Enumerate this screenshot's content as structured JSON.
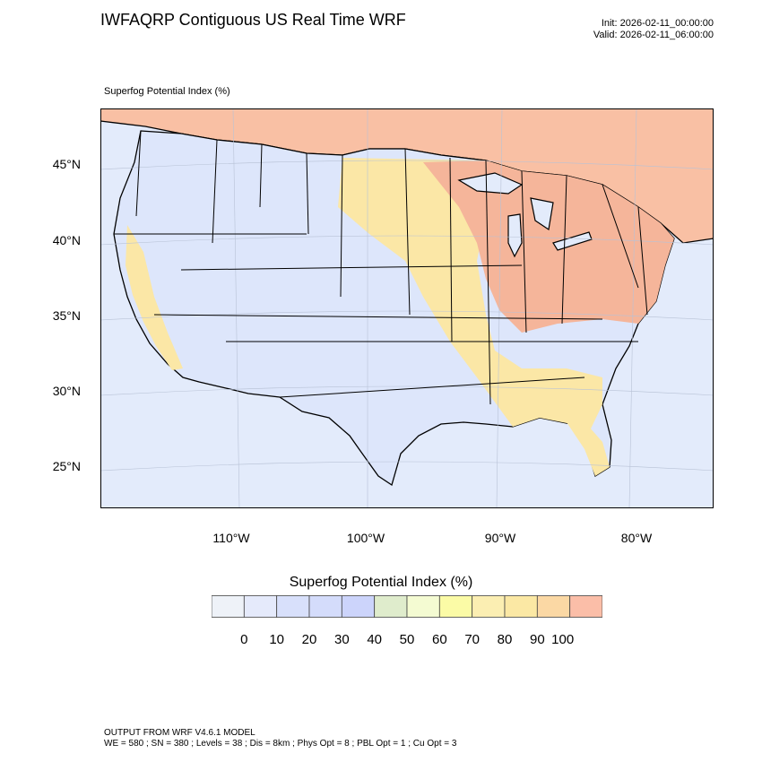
{
  "header": {
    "title": "IWFAQRP Contiguous US Real Time WRF",
    "init": "Init: 2026-02-11_00:00:00",
    "valid": "Valid: 2026-02-11_06:00:00"
  },
  "map": {
    "subtitle": "Superfog Potential Index   (%)",
    "lat_labels": [
      "45°N",
      "40°N",
      "35°N",
      "30°N",
      "25°N"
    ],
    "lon_labels": [
      "110°W",
      "100°W",
      "90°W",
      "80°W"
    ],
    "colors": {
      "ocean": "#e3ebfb",
      "land_low": "#dde6fb",
      "canada": "#f9c0a4",
      "moderate": "#fbe7a6",
      "high": "#f5b59a",
      "border": "#000000"
    }
  },
  "colorbar": {
    "title": "Superfog Potential Index  (%)",
    "colors": [
      "#eef2f8",
      "#e5eafb",
      "#d8e0fb",
      "#d4dcfb",
      "#ccd4fb",
      "#dfeccc",
      "#f4fbd2",
      "#fbfba6",
      "#fbeeb2",
      "#fbe8a4",
      "#fbd8a4",
      "#fbbea8"
    ],
    "labels": [
      "0",
      "10",
      "20",
      "30",
      "40",
      "50",
      "60",
      "70",
      "80",
      "90",
      "100"
    ]
  },
  "footer": {
    "line1": "OUTPUT FROM WRF V4.6.1 MODEL",
    "line2": "WE = 580 ; SN = 380 ; Levels = 38 ; Dis = 8km ; Phys Opt = 8 ; PBL Opt = 1 ; Cu Opt = 3"
  }
}
